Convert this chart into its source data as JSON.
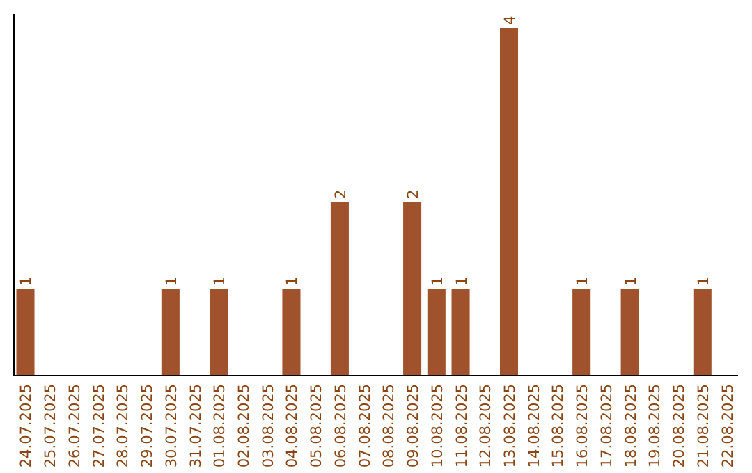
{
  "chart_data": {
    "type": "bar",
    "categories": [
      "24.07.2025",
      "25.07.2025",
      "26.07.2025",
      "27.07.2025",
      "28.07.2025",
      "29.07.2025",
      "30.07.2025",
      "31.07.2025",
      "01.08.2025",
      "02.08.2025",
      "03.08.2025",
      "04.08.2025",
      "05.08.2025",
      "06.08.2025",
      "07.08.2025",
      "08.08.2025",
      "09.08.2025",
      "10.08.2025",
      "11.08.2025",
      "12.08.2025",
      "13.08.2025",
      "14.08.2025",
      "15.08.2025",
      "16.08.2025",
      "17.08.2025",
      "18.08.2025",
      "19.08.2025",
      "20.08.2025",
      "21.08.2025",
      "22.08.2025"
    ],
    "values": [
      1,
      0,
      0,
      0,
      0,
      0,
      1,
      0,
      1,
      0,
      0,
      1,
      0,
      2,
      0,
      0,
      2,
      1,
      1,
      0,
      4,
      0,
      0,
      1,
      0,
      1,
      0,
      0,
      1,
      0
    ],
    "value_labels": [
      "1",
      null,
      null,
      null,
      null,
      null,
      "1",
      null,
      "1",
      null,
      null,
      "1",
      null,
      "2",
      null,
      null,
      "2",
      "1",
      "1",
      null,
      "4",
      null,
      null,
      "1",
      null,
      "1",
      null,
      null,
      "1",
      null
    ],
    "color": "#a0522d"
  }
}
